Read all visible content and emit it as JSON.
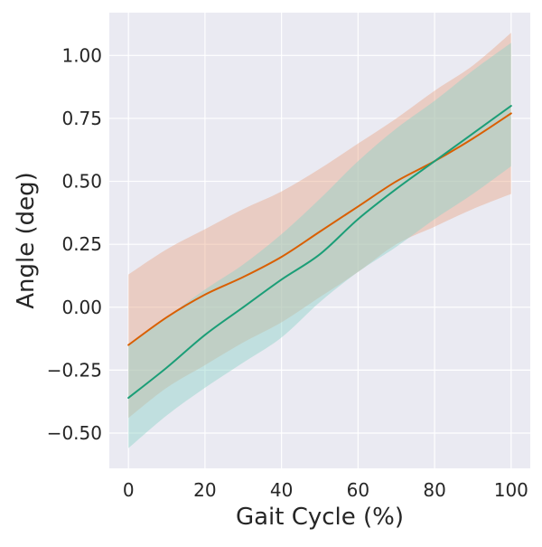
{
  "chart_data": {
    "type": "line",
    "title": "",
    "xlabel": "Gait Cycle (%)",
    "ylabel": "Angle (deg)",
    "xlim": [
      -5,
      105
    ],
    "ylim": [
      -0.64,
      1.17
    ],
    "x_ticks": [
      0,
      20,
      40,
      60,
      80,
      100
    ],
    "x_tick_labels": [
      "0",
      "20",
      "40",
      "60",
      "80",
      "100"
    ],
    "y_ticks": [
      -0.5,
      -0.25,
      0.0,
      0.25,
      0.5,
      0.75,
      1.0
    ],
    "y_tick_labels": [
      "−0.50",
      "−0.25",
      "0.00",
      "0.25",
      "0.50",
      "0.75",
      "1.00"
    ],
    "grid": true,
    "legend": "none",
    "background": "#EAEAF2",
    "grid_color": "#FFFFFF",
    "x": [
      0,
      10,
      20,
      30,
      40,
      50,
      60,
      70,
      80,
      90,
      100
    ],
    "series": [
      {
        "color": "#D95F02",
        "band_color": "#E8A98A",
        "values": [
          -0.15,
          -0.04,
          0.05,
          0.12,
          0.2,
          0.3,
          0.4,
          0.5,
          0.58,
          0.67,
          0.77
        ],
        "upper": [
          0.13,
          0.23,
          0.31,
          0.39,
          0.46,
          0.55,
          0.65,
          0.75,
          0.86,
          0.96,
          1.09
        ],
        "lower": [
          -0.44,
          -0.32,
          -0.23,
          -0.14,
          -0.06,
          0.04,
          0.14,
          0.25,
          0.32,
          0.39,
          0.45
        ]
      },
      {
        "color": "#1B9E77",
        "band_color": "#8DD3C7",
        "values": [
          -0.36,
          -0.24,
          -0.11,
          0.0,
          0.11,
          0.21,
          0.35,
          0.47,
          0.58,
          0.69,
          0.8
        ],
        "upper": [
          -0.15,
          -0.04,
          0.07,
          0.17,
          0.29,
          0.43,
          0.58,
          0.71,
          0.82,
          0.94,
          1.05
        ],
        "lower": [
          -0.56,
          -0.43,
          -0.32,
          -0.22,
          -0.12,
          0.02,
          0.14,
          0.24,
          0.35,
          0.45,
          0.56
        ]
      }
    ]
  }
}
